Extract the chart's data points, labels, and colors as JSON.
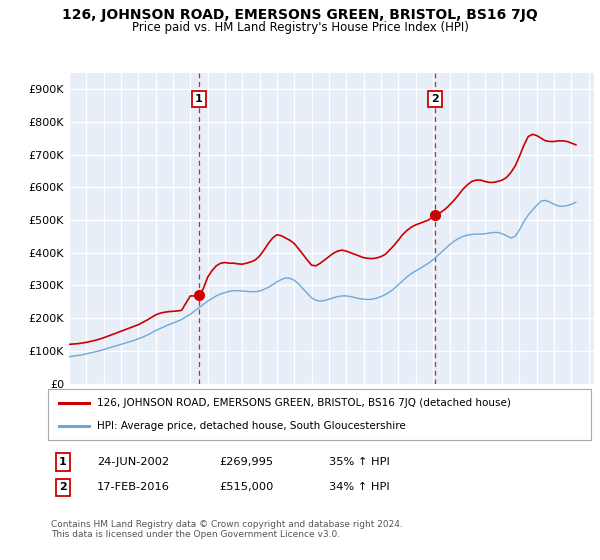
{
  "title": "126, JOHNSON ROAD, EMERSONS GREEN, BRISTOL, BS16 7JQ",
  "subtitle": "Price paid vs. HM Land Registry's House Price Index (HPI)",
  "legend_line1": "126, JOHNSON ROAD, EMERSONS GREEN, BRISTOL, BS16 7JQ (detached house)",
  "legend_line2": "HPI: Average price, detached house, South Gloucestershire",
  "annotation1_label": "1",
  "annotation1_date": "24-JUN-2002",
  "annotation1_price": "£269,995",
  "annotation1_hpi": "35% ↑ HPI",
  "annotation2_label": "2",
  "annotation2_date": "17-FEB-2016",
  "annotation2_price": "£515,000",
  "annotation2_hpi": "34% ↑ HPI",
  "footer": "Contains HM Land Registry data © Crown copyright and database right 2024.\nThis data is licensed under the Open Government Licence v3.0.",
  "red_color": "#cc0000",
  "blue_color": "#6fa8d4",
  "background_color": "#ffffff",
  "plot_bg_color": "#e8eef7",
  "ylim": [
    0,
    950000
  ],
  "yticks": [
    0,
    100000,
    200000,
    300000,
    400000,
    500000,
    600000,
    700000,
    800000,
    900000
  ],
  "ytick_labels": [
    "£0",
    "£100K",
    "£200K",
    "£300K",
    "£400K",
    "£500K",
    "£600K",
    "£700K",
    "£800K",
    "£900K"
  ],
  "hpi_x": [
    1995,
    1995.25,
    1995.5,
    1995.75,
    1996,
    1996.25,
    1996.5,
    1996.75,
    1997,
    1997.25,
    1997.5,
    1997.75,
    1998,
    1998.25,
    1998.5,
    1998.75,
    1999,
    1999.25,
    1999.5,
    1999.75,
    2000,
    2000.25,
    2000.5,
    2000.75,
    2001,
    2001.25,
    2001.5,
    2001.75,
    2002,
    2002.25,
    2002.5,
    2002.75,
    2003,
    2003.25,
    2003.5,
    2003.75,
    2004,
    2004.25,
    2004.5,
    2004.75,
    2005,
    2005.25,
    2005.5,
    2005.75,
    2006,
    2006.25,
    2006.5,
    2006.75,
    2007,
    2007.25,
    2007.5,
    2007.75,
    2008,
    2008.25,
    2008.5,
    2008.75,
    2009,
    2009.25,
    2009.5,
    2009.75,
    2010,
    2010.25,
    2010.5,
    2010.75,
    2011,
    2011.25,
    2011.5,
    2011.75,
    2012,
    2012.25,
    2012.5,
    2012.75,
    2013,
    2013.25,
    2013.5,
    2013.75,
    2014,
    2014.25,
    2014.5,
    2014.75,
    2015,
    2015.25,
    2015.5,
    2015.75,
    2016,
    2016.25,
    2016.5,
    2016.75,
    2017,
    2017.25,
    2017.5,
    2017.75,
    2018,
    2018.25,
    2018.5,
    2018.75,
    2019,
    2019.25,
    2019.5,
    2019.75,
    2020,
    2020.25,
    2020.5,
    2020.75,
    2021,
    2021.25,
    2021.5,
    2021.75,
    2022,
    2022.25,
    2022.5,
    2022.75,
    2023,
    2023.25,
    2023.5,
    2023.75,
    2024,
    2024.25
  ],
  "hpi_y": [
    82000,
    84000,
    86000,
    88000,
    91000,
    94000,
    97000,
    100000,
    104000,
    108000,
    112000,
    116000,
    120000,
    124000,
    128000,
    132000,
    137000,
    142000,
    148000,
    155000,
    162000,
    168000,
    174000,
    180000,
    185000,
    190000,
    196000,
    204000,
    212000,
    222000,
    232000,
    242000,
    252000,
    260000,
    268000,
    274000,
    278000,
    282000,
    284000,
    284000,
    283000,
    282000,
    281000,
    281000,
    283000,
    288000,
    294000,
    302000,
    311000,
    318000,
    323000,
    322000,
    316000,
    305000,
    290000,
    276000,
    262000,
    255000,
    252000,
    254000,
    258000,
    262000,
    266000,
    268000,
    268000,
    266000,
    263000,
    260000,
    258000,
    257000,
    258000,
    261000,
    266000,
    272000,
    280000,
    290000,
    302000,
    314000,
    326000,
    336000,
    344000,
    352000,
    360000,
    368000,
    378000,
    390000,
    402000,
    414000,
    426000,
    436000,
    444000,
    450000,
    454000,
    456000,
    457000,
    457000,
    458000,
    460000,
    462000,
    462000,
    458000,
    452000,
    445000,
    450000,
    470000,
    495000,
    515000,
    530000,
    545000,
    558000,
    560000,
    555000,
    548000,
    543000,
    542000,
    544000,
    548000,
    554000
  ],
  "red_x": [
    1995,
    1995.25,
    1995.5,
    1995.75,
    1996,
    1996.25,
    1996.5,
    1996.75,
    1997,
    1997.25,
    1997.5,
    1997.75,
    1998,
    1998.25,
    1998.5,
    1998.75,
    1999,
    1999.25,
    1999.5,
    1999.75,
    2000,
    2000.25,
    2000.5,
    2000.75,
    2001,
    2001.25,
    2001.5,
    2001.75,
    2002,
    2002.25,
    2002.5,
    2002.75,
    2003,
    2003.25,
    2003.5,
    2003.75,
    2004,
    2004.25,
    2004.5,
    2004.75,
    2005,
    2005.25,
    2005.5,
    2005.75,
    2006,
    2006.25,
    2006.5,
    2006.75,
    2007,
    2007.25,
    2007.5,
    2007.75,
    2008,
    2008.25,
    2008.5,
    2008.75,
    2009,
    2009.25,
    2009.5,
    2009.75,
    2010,
    2010.25,
    2010.5,
    2010.75,
    2011,
    2011.25,
    2011.5,
    2011.75,
    2012,
    2012.25,
    2012.5,
    2012.75,
    2013,
    2013.25,
    2013.5,
    2013.75,
    2014,
    2014.25,
    2014.5,
    2014.75,
    2015,
    2015.25,
    2015.5,
    2015.75,
    2016,
    2016.25,
    2016.5,
    2016.75,
    2017,
    2017.25,
    2017.5,
    2017.75,
    2018,
    2018.25,
    2018.5,
    2018.75,
    2019,
    2019.25,
    2019.5,
    2019.75,
    2020,
    2020.25,
    2020.5,
    2020.75,
    2021,
    2021.25,
    2021.5,
    2021.75,
    2022,
    2022.25,
    2022.5,
    2022.75,
    2023,
    2023.25,
    2023.5,
    2023.75,
    2024,
    2024.25
  ],
  "red_y": [
    120000,
    121000,
    122000,
    124000,
    126000,
    129000,
    132000,
    136000,
    140000,
    145000,
    150000,
    155000,
    160000,
    165000,
    170000,
    175000,
    180000,
    187000,
    194000,
    202000,
    210000,
    215000,
    218000,
    220000,
    221000,
    222000,
    224000,
    246000,
    268000,
    268000,
    268000,
    290000,
    325000,
    345000,
    360000,
    368000,
    370000,
    368000,
    368000,
    366000,
    365000,
    368000,
    372000,
    378000,
    390000,
    408000,
    428000,
    445000,
    455000,
    452000,
    445000,
    438000,
    428000,
    412000,
    395000,
    378000,
    362000,
    360000,
    368000,
    378000,
    388000,
    398000,
    405000,
    408000,
    405000,
    400000,
    395000,
    390000,
    385000,
    383000,
    382000,
    384000,
    388000,
    395000,
    408000,
    422000,
    438000,
    455000,
    468000,
    478000,
    485000,
    490000,
    495000,
    500000,
    510000,
    518000,
    525000,
    535000,
    548000,
    562000,
    578000,
    595000,
    608000,
    618000,
    622000,
    622000,
    618000,
    615000,
    615000,
    618000,
    622000,
    630000,
    645000,
    665000,
    695000,
    728000,
    755000,
    762000,
    758000,
    750000,
    742000,
    740000,
    740000,
    742000,
    742000,
    740000,
    735000,
    730000
  ],
  "marker1_x": 2002.48,
  "marker1_y": 269995,
  "marker2_x": 2016.12,
  "marker2_y": 515000,
  "vline1_x": 2002.48,
  "vline2_x": 2016.12,
  "xmin": 1995,
  "xmax": 2025.3
}
